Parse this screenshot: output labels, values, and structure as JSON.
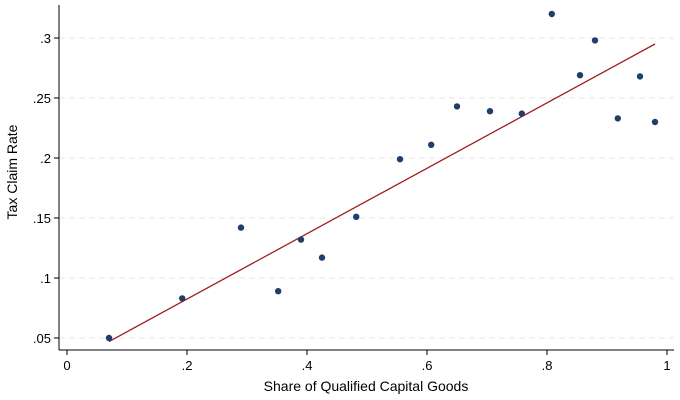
{
  "chart_data": {
    "type": "scatter",
    "title": "",
    "xlabel": "Share of Qualified Capital Goods",
    "ylabel": "Tax Claim Rate",
    "xlim": [
      0,
      1
    ],
    "ylim": [
      0.04,
      0.325
    ],
    "xticks": [
      0,
      0.2,
      0.4,
      0.6,
      0.8,
      1
    ],
    "xtick_labels": [
      "0",
      ".2",
      ".4",
      ".6",
      ".8",
      "1"
    ],
    "yticks": [
      0.05,
      0.1,
      0.15,
      0.2,
      0.25,
      0.3
    ],
    "ytick_labels": [
      ".05",
      ".1",
      ".15",
      ".2",
      ".25",
      ".3"
    ],
    "grid": "horizontal dashed",
    "legend": "none",
    "points": [
      {
        "x": 0.07,
        "y": 0.05
      },
      {
        "x": 0.192,
        "y": 0.083
      },
      {
        "x": 0.29,
        "y": 0.142
      },
      {
        "x": 0.352,
        "y": 0.089
      },
      {
        "x": 0.39,
        "y": 0.132
      },
      {
        "x": 0.425,
        "y": 0.117
      },
      {
        "x": 0.482,
        "y": 0.151
      },
      {
        "x": 0.555,
        "y": 0.199
      },
      {
        "x": 0.607,
        "y": 0.211
      },
      {
        "x": 0.65,
        "y": 0.243
      },
      {
        "x": 0.705,
        "y": 0.239
      },
      {
        "x": 0.758,
        "y": 0.237
      },
      {
        "x": 0.808,
        "y": 0.32
      },
      {
        "x": 0.855,
        "y": 0.269
      },
      {
        "x": 0.88,
        "y": 0.298
      },
      {
        "x": 0.918,
        "y": 0.233
      },
      {
        "x": 0.955,
        "y": 0.268
      },
      {
        "x": 0.98,
        "y": 0.23
      }
    ],
    "fit_line": {
      "x": [
        0.07,
        0.98
      ],
      "y": [
        0.047,
        0.295
      ]
    },
    "colors": {
      "points": "#1f3f6a",
      "fit_line": "#a11e22",
      "grid": "#e4e4e4",
      "axis": "#000000"
    }
  }
}
